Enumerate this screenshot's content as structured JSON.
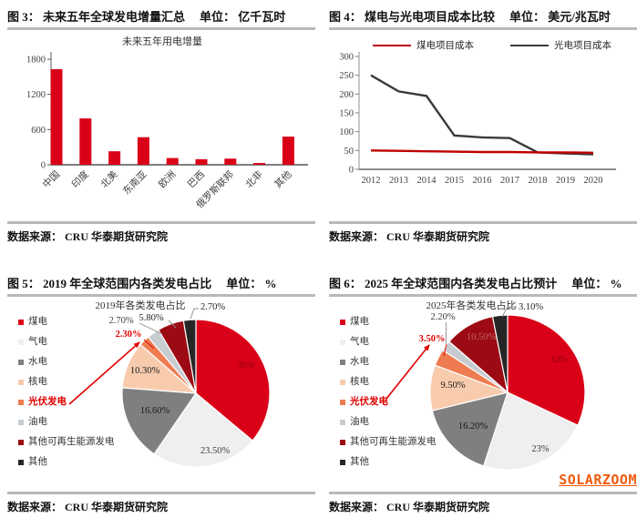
{
  "figures": {
    "fig3": {
      "caption": "图 3： 未来五年全球发电增量汇总",
      "unit": "单位： 亿千瓦时",
      "source": "数据来源： CRU  华泰期货研究院"
    },
    "fig4": {
      "caption": "图 4： 煤电与光电项目成本比较",
      "unit": "单位： 美元/兆瓦时",
      "source": "数据来源： CRU  华泰期货研究院"
    },
    "fig5": {
      "caption": "图 5： 2019 年全球范围内各类发电占比",
      "unit": "单位： %",
      "source": "数据来源： CRU  华泰期货研究院"
    },
    "fig6": {
      "caption": "图 6： 2025 年全球范围内各类发电占比预计",
      "unit": "单位： %",
      "source": "数据来源： CRU  华泰期货研究院"
    }
  },
  "watermark": "SOLARZOOM",
  "colors": {
    "accent_red": "#da0018",
    "dark_line": "#3a3a3a",
    "rule_gray": "#b9b9b9",
    "watermark_orange": "#ef5b0e",
    "highlight_red": "#e00000"
  },
  "chart_data": [
    {
      "id": "fig3",
      "type": "bar",
      "title": "未来五年用电增量",
      "categories": [
        "中国",
        "印度",
        "北美",
        "东南亚",
        "欧洲",
        "巴西",
        "俄罗斯联邦",
        "北非",
        "其他"
      ],
      "values": [
        1630,
        790,
        230,
        470,
        115,
        95,
        105,
        30,
        480
      ],
      "xlabel": "",
      "ylabel": "",
      "ylim": [
        0,
        1800
      ],
      "yticks": [
        0,
        600,
        1200,
        1800
      ],
      "bar_color": "#da0018",
      "grid": false,
      "legend_position": "none"
    },
    {
      "id": "fig4",
      "type": "line",
      "title": "",
      "x": [
        2012,
        2013,
        2014,
        2015,
        2016,
        2017,
        2018,
        2019,
        2020
      ],
      "series": [
        {
          "name": "煤电项目成本",
          "color": "#c00000",
          "values": [
            50,
            49,
            48,
            47,
            46,
            46,
            45,
            45,
            44
          ]
        },
        {
          "name": "光电项目成本",
          "color": "#3a3a3a",
          "values": [
            250,
            207,
            195,
            90,
            85,
            83,
            45,
            42,
            40
          ]
        }
      ],
      "ylim": [
        0,
        300
      ],
      "yticks": [
        0,
        50,
        100,
        150,
        200,
        250,
        300
      ],
      "grid": false,
      "legend_position": "top"
    },
    {
      "id": "fig5",
      "type": "pie",
      "title": "2019年各类发电占比",
      "highlight": "光伏发电",
      "slices": [
        {
          "name": "煤电",
          "value": 36.1,
          "label": "36%",
          "color": "#da0018"
        },
        {
          "name": "气电",
          "value": 23.5,
          "label": "23.50%",
          "color": "#efefef"
        },
        {
          "name": "水电",
          "value": 16.6,
          "label": "16.60%",
          "color": "#7f7f7f"
        },
        {
          "name": "核电",
          "value": 10.3,
          "label": "10.30%",
          "color": "#f8cbad"
        },
        {
          "name": "光伏发电",
          "value": 2.3,
          "label": "2.30%",
          "color": "#ee7c50"
        },
        {
          "name": "油电",
          "value": 2.7,
          "label": "2.70%",
          "color": "#c7ccd1"
        },
        {
          "name": "其他可再生能源发电",
          "value": 5.8,
          "label": "5.80%",
          "color": "#9c0b13"
        },
        {
          "name": "其他",
          "value": 2.7,
          "label": "2.70%",
          "color": "#262626"
        }
      ]
    },
    {
      "id": "fig6",
      "type": "pie",
      "title": "2025年各类发电占比",
      "highlight": "光伏发电",
      "slices": [
        {
          "name": "煤电",
          "value": 32.0,
          "label": "32%",
          "color": "#da0018"
        },
        {
          "name": "气电",
          "value": 23.0,
          "label": "23%",
          "color": "#efefef"
        },
        {
          "name": "水电",
          "value": 16.2,
          "label": "16.20%",
          "color": "#7f7f7f"
        },
        {
          "name": "核电",
          "value": 9.5,
          "label": "9.50%",
          "color": "#f8cbad"
        },
        {
          "name": "光伏发电",
          "value": 3.5,
          "label": "3.50%",
          "color": "#ee7c50"
        },
        {
          "name": "油电",
          "value": 2.2,
          "label": "2.20%",
          "color": "#c7ccd1"
        },
        {
          "name": "其他可再生能源发电",
          "value": 10.5,
          "label": "10.50%",
          "color": "#9c0b13"
        },
        {
          "name": "其他",
          "value": 3.1,
          "label": "3.10%",
          "color": "#262626"
        }
      ]
    }
  ]
}
